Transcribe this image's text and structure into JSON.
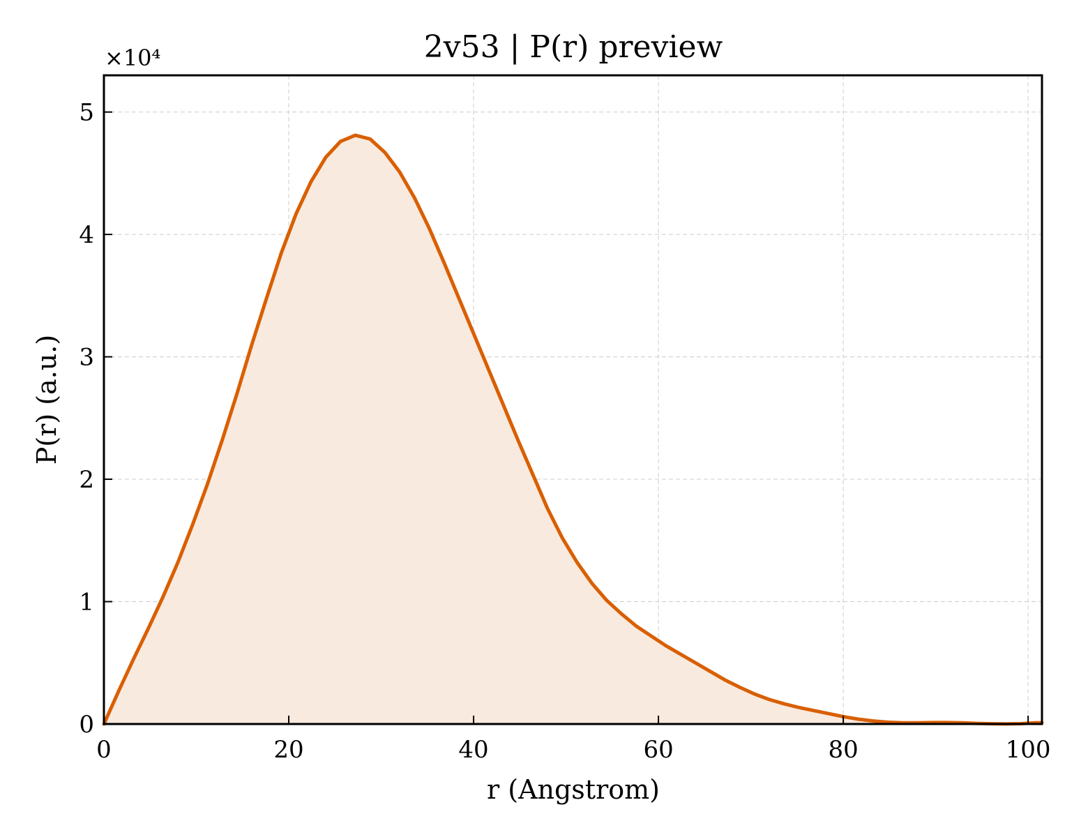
{
  "chart_data": {
    "type": "area",
    "title": "2v53 | P(r) preview",
    "xlabel": "r (Angstrom)",
    "ylabel": "P(r) (a.u.)",
    "y_multiplier_label": "×10⁴",
    "xlim": [
      0,
      101.5
    ],
    "ylim": [
      0,
      5.3
    ],
    "xticks": [
      0,
      20,
      40,
      60,
      80,
      100
    ],
    "xtick_labels": [
      "0",
      "20",
      "40",
      "60",
      "80",
      "100"
    ],
    "yticks": [
      0,
      1,
      2,
      3,
      4,
      5
    ],
    "ytick_labels": [
      "0",
      "1",
      "2",
      "3",
      "4",
      "5"
    ],
    "grid": true,
    "line_color": "#d95f02",
    "fill_color": "#f9eadf",
    "x": [
      0,
      1.6,
      3.2,
      4.8,
      6.4,
      8.0,
      9.6,
      11.2,
      12.8,
      14.4,
      16.0,
      17.6,
      19.2,
      20.8,
      22.4,
      24.0,
      25.6,
      27.2,
      28.8,
      30.4,
      32.0,
      33.6,
      35.2,
      36.8,
      38.4,
      40.0,
      41.6,
      43.2,
      44.8,
      46.4,
      48.0,
      49.6,
      51.2,
      52.8,
      54.4,
      56.0,
      57.6,
      59.2,
      60.8,
      62.4,
      64.0,
      65.6,
      67.2,
      68.8,
      70.4,
      72.0,
      73.6,
      75.2,
      76.8,
      78.4,
      80.0,
      81.6,
      83.2,
      84.8,
      86.4,
      88.0,
      89.6,
      91.2,
      92.8,
      94.4,
      96.0,
      97.6,
      99.2,
      100.8,
      101.5
    ],
    "series": [
      {
        "values": [
          0.0,
          0.27,
          0.53,
          0.78,
          1.04,
          1.32,
          1.63,
          1.96,
          2.32,
          2.7,
          3.1,
          3.48,
          3.85,
          4.17,
          4.43,
          4.63,
          4.76,
          4.81,
          4.78,
          4.67,
          4.51,
          4.3,
          4.05,
          3.77,
          3.48,
          3.19,
          2.9,
          2.61,
          2.32,
          2.04,
          1.76,
          1.52,
          1.32,
          1.15,
          1.01,
          0.9,
          0.8,
          0.72,
          0.64,
          0.57,
          0.5,
          0.43,
          0.36,
          0.3,
          0.245,
          0.2,
          0.165,
          0.135,
          0.11,
          0.085,
          0.06,
          0.04,
          0.025,
          0.015,
          0.01,
          0.01,
          0.012,
          0.012,
          0.01,
          0.005,
          0.002,
          0.001,
          0.003,
          0.01,
          0.01
        ]
      }
    ]
  }
}
